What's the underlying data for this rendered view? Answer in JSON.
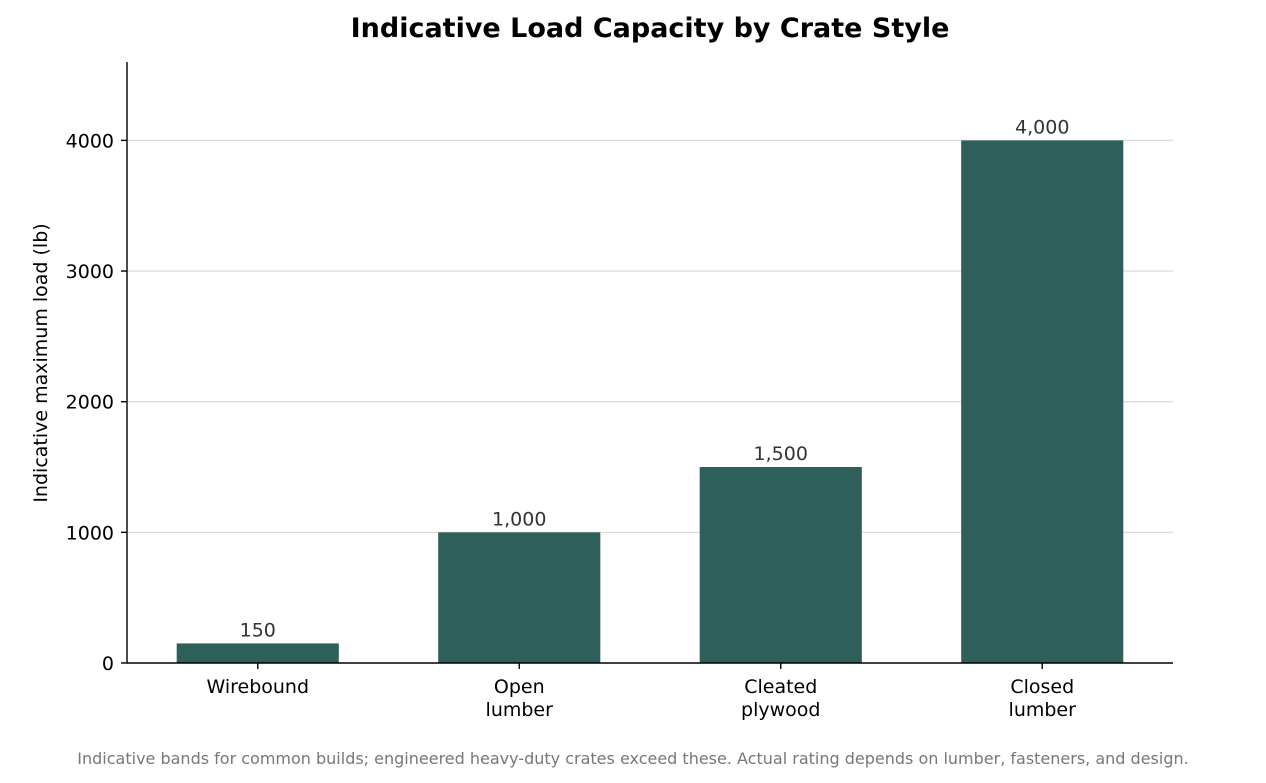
{
  "chart_data": {
    "type": "bar",
    "title": "Indicative Load Capacity by Crate Style",
    "ylabel": "Indicative maximum load (lb)",
    "xlabel": "",
    "categories": [
      [
        "Wirebound"
      ],
      [
        "Open",
        "lumber"
      ],
      [
        "Cleated",
        "plywood"
      ],
      [
        "Closed",
        "lumber"
      ]
    ],
    "values": [
      150,
      1000,
      1500,
      4000
    ],
    "value_labels": [
      "150",
      "1,000",
      "1,500",
      "4,000"
    ],
    "ylim": [
      0,
      4600
    ],
    "yticks": [
      0,
      1000,
      2000,
      3000,
      4000
    ],
    "grid": "y",
    "bar_color": "#2e5f5b",
    "footnote": "Indicative bands for common builds; engineered heavy-duty crates exceed these. Actual rating depends on lumber, fasteners, and design."
  }
}
